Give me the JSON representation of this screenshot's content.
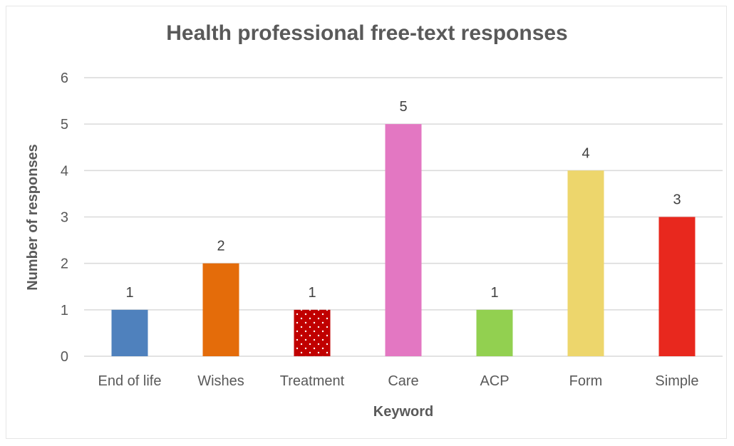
{
  "chart_data": {
    "type": "bar",
    "title": "Health professional free-text responses",
    "xlabel": "Keyword",
    "ylabel": "Number of responses",
    "categories": [
      "End of life",
      "Wishes",
      "Treatment",
      "Care",
      "ACP",
      "Form",
      "Simple"
    ],
    "values": [
      1,
      2,
      1,
      5,
      1,
      4,
      3
    ],
    "ylim": [
      0,
      6
    ],
    "yticks": [
      0,
      1,
      2,
      3,
      4,
      5,
      6
    ],
    "grid": true,
    "data_labels": true,
    "colors": [
      "#4f81bd",
      "#e46c0a",
      "#c00000",
      "#e377c2",
      "#92d050",
      "#edd66c",
      "#e8281e"
    ],
    "patterns": [
      "solid",
      "solid",
      "dotted",
      "solid",
      "solid",
      "solid",
      "solid"
    ]
  }
}
